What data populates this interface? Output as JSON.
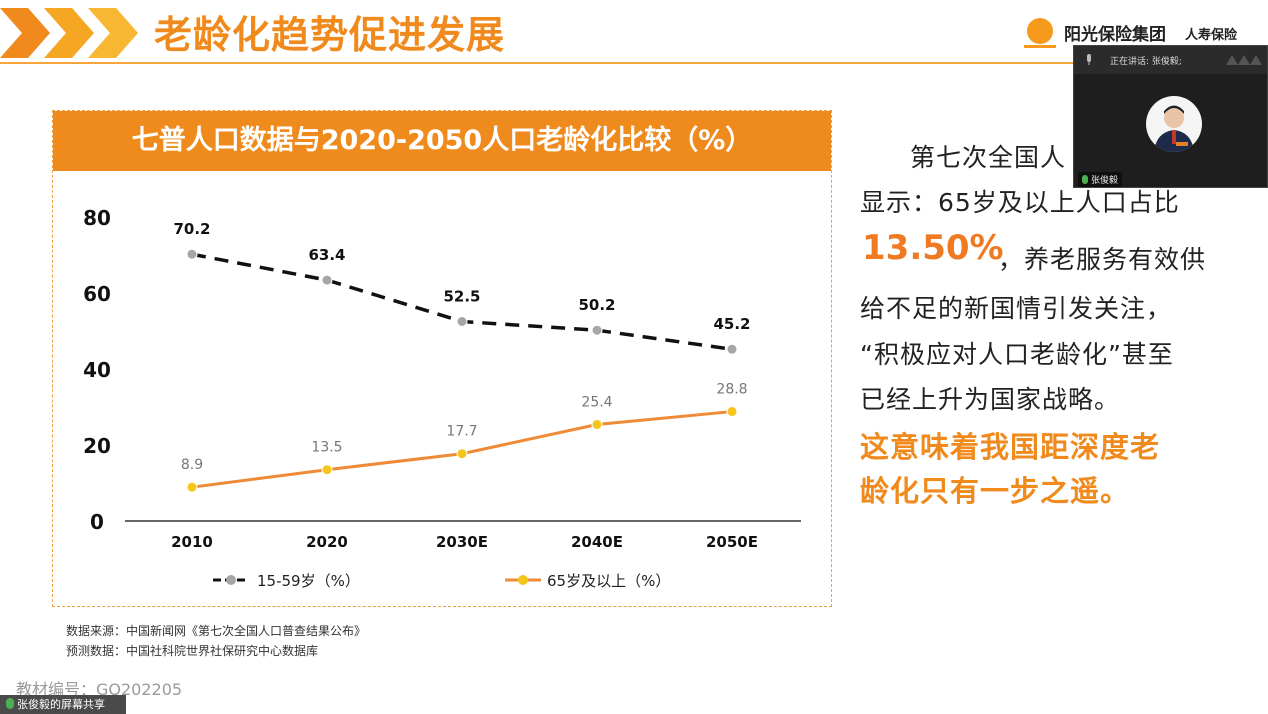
{
  "header": {
    "title": "老龄化趋势促进发展",
    "logo_name": "阳光保险集团",
    "logo_sub": "人寿保险"
  },
  "colors": {
    "accent": "#ef8a1c",
    "series_working": "#111111",
    "series_elderly": "#ef8a36",
    "marker_working": "#a6a6a6",
    "marker_elderly": "#f5c518"
  },
  "chart_data": {
    "type": "line",
    "title": "七普人口数据与2020-2050人口老龄化比较（%）",
    "categories": [
      "2010",
      "2020",
      "2030E",
      "2040E",
      "2050E"
    ],
    "ylim": [
      0,
      80
    ],
    "yticks": [
      "0",
      "20",
      "40",
      "60",
      "80"
    ],
    "grid": false,
    "legend_position": "bottom",
    "series": [
      {
        "name": "15-59岁（%）",
        "values": [
          70.2,
          63.4,
          52.5,
          50.2,
          45.2
        ],
        "labels": [
          "70.2",
          "63.4",
          "52.5",
          "50.2",
          "45.2"
        ],
        "style": "dashed"
      },
      {
        "name": "65岁及以上（%）",
        "values": [
          8.9,
          13.5,
          17.7,
          25.4,
          28.8
        ],
        "labels": [
          "8.9",
          "13.5",
          "17.7",
          "25.4",
          "28.8"
        ],
        "style": "solid"
      }
    ]
  },
  "source": {
    "line1": "数据来源：中国新闻网《第七次全国人口普查结果公布》",
    "line2": "预测数据：中国社科院世界社保研究中心数据库"
  },
  "code": "教材编号：GQ202205",
  "share_bar": "张俊毅的屏幕共享",
  "text": {
    "line1": "第七次全国人",
    "line2": "显示：65岁及以上人口占比",
    "pct": "13.50%",
    "line3_rest": "，养老服务有效供",
    "line4": "给不足的新国情引发关注，",
    "line5": "“积极应对人口老龄化”甚至",
    "line6": "已经上升为国家战略。",
    "highlight1": "这意味着我国距深度老",
    "highlight2": "龄化只有一步之遥。"
  },
  "video": {
    "speaking": "正在讲话: 张俊毅;",
    "name": "张俊毅"
  }
}
